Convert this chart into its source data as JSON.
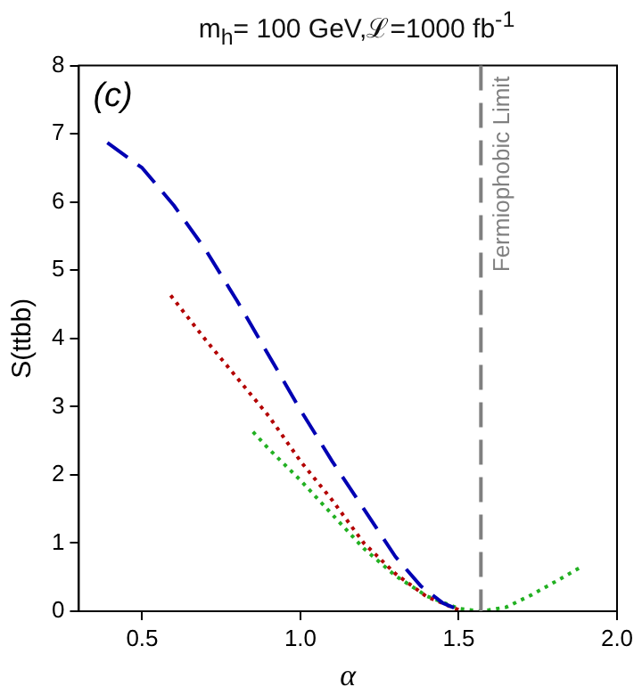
{
  "chart_data": {
    "type": "line",
    "title": "m$_{h}$= 100 GeV,ℒ=1000 fb$^{-1}$",
    "xlabel": "α",
    "ylabel": "S(ttbb)",
    "annotations": [
      "(c)"
    ],
    "xlim": [
      0.3,
      2.0
    ],
    "xticks": [
      0.5,
      {
        "value": 1,
        "label": "1.0"
      },
      1.5,
      {
        "value": 2,
        "label": "2.0"
      }
    ],
    "ylim": [
      0,
      8
    ],
    "yticks": [
      0,
      1,
      2,
      3,
      4,
      5,
      6,
      7,
      8
    ],
    "grid": false,
    "legend": false,
    "marker": "none",
    "ref_lines": [
      {
        "axis": "x",
        "value": 1.57,
        "label": "Fermiophobic Limit",
        "color": "#808080",
        "line_style": "dashed"
      }
    ],
    "series": [
      {
        "color": "#0000b3",
        "line_style": "dashed",
        "x": [
          0.39,
          0.5,
          0.6,
          0.7,
          0.8,
          0.9,
          1.0,
          1.1,
          1.2,
          1.3,
          1.38,
          1.45,
          1.5
        ],
        "values": [
          6.87,
          6.5,
          5.95,
          5.3,
          4.55,
          3.75,
          2.95,
          2.2,
          1.5,
          0.8,
          0.37,
          0.12,
          0.02
        ]
      },
      {
        "color": "#b30000",
        "line_style": "dotted",
        "x": [
          0.59,
          0.7,
          0.8,
          0.9,
          1.0,
          1.1,
          1.2,
          1.3,
          1.4,
          1.5
        ],
        "values": [
          4.63,
          3.98,
          3.42,
          2.86,
          2.2,
          1.63,
          1.0,
          0.55,
          0.21,
          0.02
        ]
      },
      {
        "color": "#22b022",
        "line_style": "dotted",
        "x": [
          0.85,
          0.9,
          1.0,
          1.1,
          1.2,
          1.3,
          1.4,
          1.5,
          1.57,
          1.65,
          1.73,
          1.8,
          1.89
        ],
        "values": [
          2.63,
          2.38,
          1.92,
          1.42,
          0.92,
          0.52,
          0.22,
          0.04,
          0,
          0.06,
          0.24,
          0.42,
          0.66
        ]
      }
    ]
  }
}
